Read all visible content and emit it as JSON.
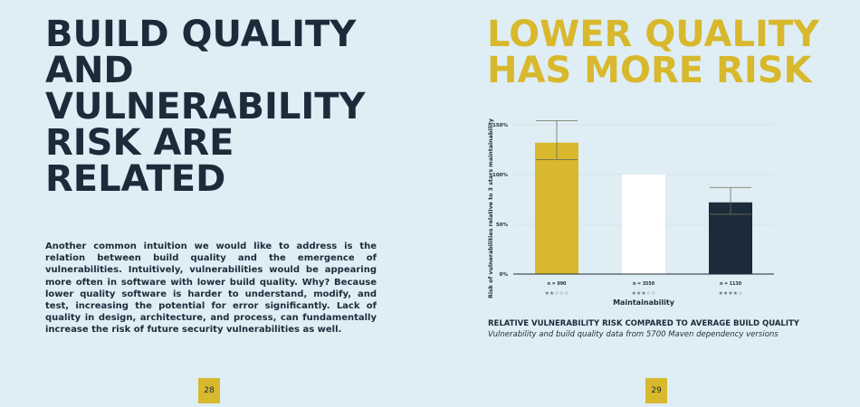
{
  "left_page": {
    "title_lines": [
      "BUILD QUALITY",
      "AND",
      "VULNERABILITY",
      "RISK ARE",
      "RELATED"
    ],
    "body": "Another common intuition we would like to address is the relation between build quality and the emergence of vulnerabilities. Intuitively, vulnerabilities would be appearing more often in software with lower build quality. Why? Because lower quality software is harder to understand, modify, and test, increasing the potential for error significantly. Lack of quality in design, architecture, and process, can fundamentally increase the risk of future security vulnerabilities as well.",
    "page_number": "28"
  },
  "right_page": {
    "title_lines": [
      "LOWER QUALITY",
      "HAS MORE RISK"
    ],
    "caption_title": "RELATIVE VULNERABILITY RISK COMPARED TO AVERAGE BUILD QUALITY",
    "caption_subtitle": "Vulnerability and build quality data from 5700 Maven dependency versions",
    "page_number": "29"
  },
  "chart_data": {
    "type": "bar",
    "ylabel": "Risk of vulnerabilities relative to 3 stars maintainability",
    "xlabel": "Maintainability",
    "ylim": [
      0,
      150
    ],
    "yticks": [
      0,
      50,
      100,
      150
    ],
    "ytick_labels": [
      "0%",
      "50%",
      "100%",
      "150%"
    ],
    "grid": true,
    "bars": [
      {
        "n_label": "n = 990",
        "stars": "★★☆☆☆",
        "value": 132,
        "err_low": 115,
        "err_high": 154,
        "color": "#d8b82c"
      },
      {
        "n_label": "n = 3550",
        "stars": "★★★☆☆",
        "value": 100,
        "err_low": null,
        "err_high": null,
        "color": "#ffffff"
      },
      {
        "n_label": "n = 1130",
        "stars": "★★★★☆",
        "value": 72,
        "err_low": 60,
        "err_high": 87,
        "color": "#1c2b3a"
      }
    ]
  }
}
